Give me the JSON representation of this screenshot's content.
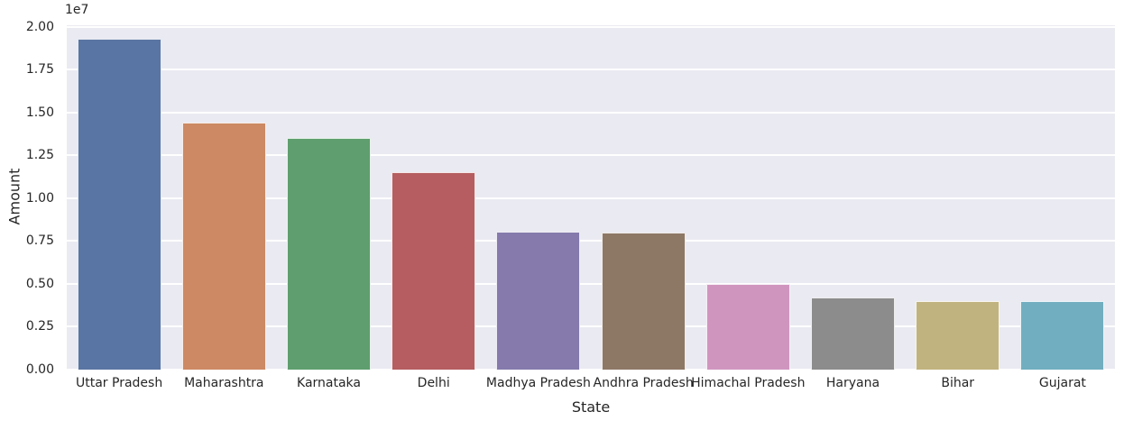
{
  "chart_data": {
    "type": "bar",
    "title": "",
    "xlabel": "State",
    "ylabel": "Amount",
    "offset_text": "1e7",
    "categories": [
      "Uttar Pradesh",
      "Maharashtra",
      "Karnataka",
      "Delhi",
      "Madhya Pradesh",
      "Andhra Pradesh",
      "Himachal Pradesh",
      "Haryana",
      "Bihar",
      "Gujarat"
    ],
    "values": [
      19300000,
      14400000,
      13500000,
      11500000,
      8050000,
      7990000,
      5000000,
      4200000,
      4000000,
      3950000
    ],
    "bar_colors": [
      "#5975A3",
      "#CC8963",
      "#5F9E6E",
      "#B55D60",
      "#857AAB",
      "#8D7866",
      "#D095BF",
      "#8C8C8C",
      "#C1B37F",
      "#71AEC0"
    ],
    "ylim": [
      0,
      20080000
    ],
    "yticks": [
      0,
      2500000,
      5000000,
      7500000,
      10000000,
      12500000,
      15000000,
      17500000,
      20000000
    ],
    "ytick_labels": [
      "0.00",
      "0.25",
      "0.50",
      "0.75",
      "1.00",
      "1.25",
      "1.50",
      "1.75",
      "2.00"
    ],
    "bar_width_fraction": 0.8,
    "grid": true,
    "legend": false,
    "plot_bg": "#EAEAF2",
    "grid_color": "#FFFFFF",
    "figure_bg": "#FFFFFF",
    "text_color": "#262626"
  }
}
